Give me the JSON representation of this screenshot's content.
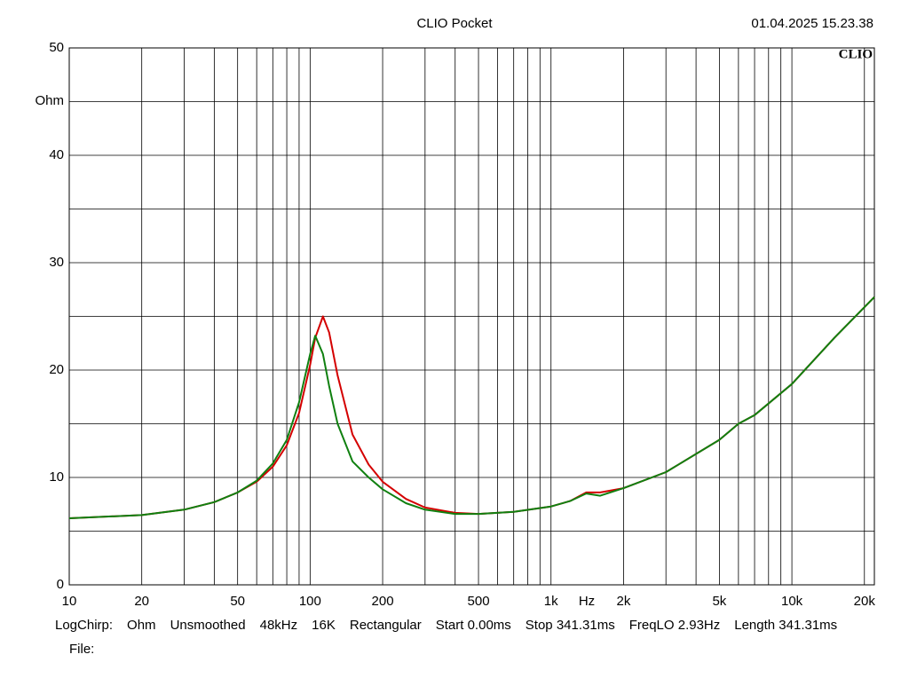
{
  "chart_data": {
    "type": "line",
    "title": "CLIO Pocket",
    "timestamp": "01.04.2025 15.23.38",
    "logo": "CLIO",
    "ylabel": "Ohm",
    "xlabel": "Hz",
    "footer": [
      "LogChirp:",
      "Ohm",
      "Unsmoothed",
      "48kHz",
      "16K",
      "Rectangular",
      "Start 0.00ms",
      "Stop 341.31ms",
      "FreqLO 2.93Hz",
      "Length 341.31ms"
    ],
    "file_label": "File:",
    "xscale": "log",
    "grid": true,
    "xlim": [
      10,
      22000
    ],
    "ylim": [
      0,
      50
    ],
    "xticks": [
      10,
      20,
      50,
      100,
      200,
      500,
      {
        "value": 1000,
        "label": "1k"
      },
      {
        "value": 2000,
        "label": "2k"
      },
      {
        "value": 5000,
        "label": "5k"
      },
      {
        "value": 10000,
        "label": "10k"
      },
      {
        "value": 20000,
        "label": "20k"
      }
    ],
    "x_minor_grid": [
      30,
      40,
      60,
      70,
      80,
      90,
      300,
      400,
      600,
      700,
      800,
      900,
      3000,
      4000,
      6000,
      7000,
      8000,
      9000
    ],
    "yticks": [
      0,
      10,
      20,
      30,
      40,
      50
    ],
    "y_minor_grid": [
      5,
      15,
      25,
      35,
      45
    ],
    "x": [
      10,
      20,
      30,
      40,
      50,
      60,
      70,
      80,
      90,
      100,
      105,
      113,
      120,
      130,
      150,
      175,
      200,
      250,
      300,
      400,
      500,
      700,
      1000,
      1200,
      1400,
      1600,
      2000,
      3000,
      5000,
      6000,
      7000,
      10000,
      15000,
      22000
    ],
    "series": [
      {
        "name": "red",
        "color": "#d40000",
        "values": [
          6.2,
          6.5,
          7.0,
          7.7,
          8.6,
          9.6,
          11.0,
          13.0,
          16.0,
          20.5,
          23.0,
          25.0,
          23.5,
          19.5,
          14.0,
          11.2,
          9.6,
          8.0,
          7.2,
          6.7,
          6.6,
          6.8,
          7.3,
          7.8,
          8.6,
          8.6,
          9.0,
          10.5,
          13.5,
          15.0,
          15.8,
          18.7,
          23.0,
          26.8
        ]
      },
      {
        "name": "green",
        "color": "#108010",
        "values": [
          6.2,
          6.5,
          7.0,
          7.7,
          8.6,
          9.7,
          11.3,
          13.5,
          17.0,
          21.5,
          23.2,
          21.5,
          18.5,
          15.0,
          11.5,
          10.0,
          8.9,
          7.6,
          7.0,
          6.6,
          6.6,
          6.8,
          7.3,
          7.8,
          8.5,
          8.3,
          9.0,
          10.5,
          13.5,
          15.0,
          15.8,
          18.7,
          23.0,
          26.8
        ]
      }
    ]
  }
}
